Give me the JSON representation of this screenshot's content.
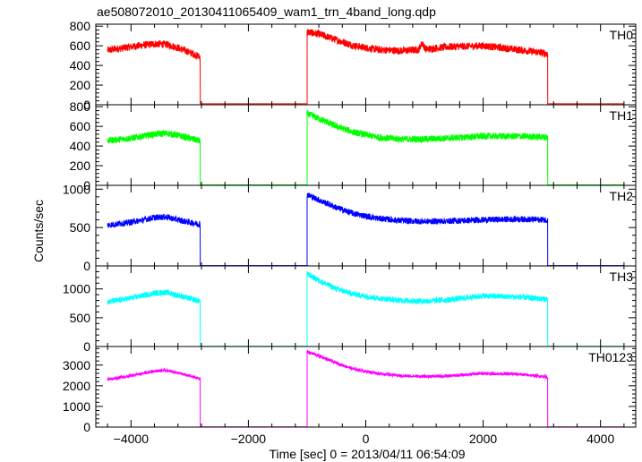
{
  "chart_data": {
    "type": "line",
    "title": "ae508072010_20130411065409_wam1_trn_4band_long.qdp",
    "xlabel": "Time [sec] 0 = 2013/04/11 06:54:09",
    "ylabel": "Counts/sec",
    "xlim": [
      -4600,
      4600
    ],
    "x_ticks": [
      -4000,
      -2000,
      0,
      2000,
      4000
    ],
    "x_ticklabels": [
      "−4000",
      "−2000",
      "0",
      "2000",
      "4000"
    ],
    "panels": [
      {
        "name": "TH0",
        "color": "#ff0000",
        "ylim": [
          0,
          820
        ],
        "y_ticks": [
          0,
          200,
          400,
          600,
          800
        ],
        "y_ticklabels": [
          "0",
          "200",
          "400",
          "600",
          "800"
        ],
        "noise": 38,
        "segments": [
          {
            "x": [
              -4400,
              -4000,
              -3600,
              -3400,
              -3200,
              -2950,
              -2820
            ],
            "y": [
              555,
              590,
              620,
              615,
              580,
              520,
              485
            ]
          },
          {
            "x": [
              -2820,
              -1000
            ],
            "y": [
              10,
              10
            ]
          },
          {
            "x": [
              -1000,
              -800,
              -500,
              -200,
              200,
              600,
              900,
              960,
              1020,
              1400,
              2000,
              2600,
              3100
            ],
            "y": [
              740,
              720,
              660,
              600,
              560,
              550,
              560,
              630,
              565,
              590,
              600,
              560,
              520
            ]
          },
          {
            "x": [
              3100,
              4400
            ],
            "y": [
              10,
              10
            ]
          }
        ]
      },
      {
        "name": "TH1",
        "color": "#00ff00",
        "ylim": [
          0,
          820
        ],
        "y_ticks": [
          0,
          200,
          400,
          600,
          800
        ],
        "y_ticklabels": [
          "0",
          "200",
          "400",
          "600",
          "800"
        ],
        "noise": 34,
        "segments": [
          {
            "x": [
              -4400,
              -4000,
              -3600,
              -3400,
              -3200,
              -2950,
              -2820
            ],
            "y": [
              455,
              480,
              520,
              530,
              510,
              470,
              450
            ]
          },
          {
            "x": [
              -2820,
              -1000
            ],
            "y": [
              5,
              5
            ]
          },
          {
            "x": [
              -1000,
              -800,
              -500,
              -200,
              200,
              600,
              1000,
              1400,
              2000,
              2600,
              3100
            ],
            "y": [
              730,
              680,
              600,
              540,
              490,
              470,
              470,
              480,
              500,
              500,
              490
            ]
          },
          {
            "x": [
              3100,
              4400
            ],
            "y": [
              5,
              5
            ]
          }
        ]
      },
      {
        "name": "TH2",
        "color": "#0000ff",
        "ylim": [
          0,
          1050
        ],
        "y_ticks": [
          0,
          500,
          1000
        ],
        "y_ticklabels": [
          "0",
          "500",
          "1000"
        ],
        "noise": 40,
        "segments": [
          {
            "x": [
              -4400,
              -4000,
              -3600,
              -3400,
              -3200,
              -2950,
              -2820
            ],
            "y": [
              530,
              570,
              630,
              640,
              600,
              560,
              540
            ]
          },
          {
            "x": [
              -2820,
              -1000
            ],
            "y": [
              5,
              5
            ]
          },
          {
            "x": [
              -1000,
              -800,
              -500,
              -200,
              200,
              600,
              1000,
              1400,
              2000,
              2600,
              3100
            ],
            "y": [
              930,
              860,
              760,
              680,
              620,
              590,
              580,
              585,
              600,
              610,
              600
            ]
          },
          {
            "x": [
              3100,
              4400
            ],
            "y": [
              5,
              5
            ]
          }
        ]
      },
      {
        "name": "TH3",
        "color": "#00ffff",
        "ylim": [
          0,
          1400
        ],
        "y_ticks": [
          0,
          500,
          1000
        ],
        "y_ticklabels": [
          "0",
          "500",
          "1000"
        ],
        "noise": 50,
        "segments": [
          {
            "x": [
              -4400,
              -4000,
              -3600,
              -3400,
              -3200,
              -2950,
              -2820
            ],
            "y": [
              770,
              840,
              930,
              940,
              890,
              820,
              790
            ]
          },
          {
            "x": [
              -2820,
              -1000
            ],
            "y": [
              5,
              5
            ]
          },
          {
            "x": [
              -1000,
              -800,
              -500,
              -200,
              200,
              600,
              1000,
              1400,
              2000,
              2600,
              3100
            ],
            "y": [
              1260,
              1150,
              1000,
              910,
              840,
              800,
              790,
              810,
              880,
              860,
              820
            ]
          },
          {
            "x": [
              3100,
              4400
            ],
            "y": [
              5,
              5
            ]
          }
        ]
      },
      {
        "name": "TH0123",
        "color": "#ff00ff",
        "ylim": [
          0,
          3900
        ],
        "y_ticks": [
          0,
          1000,
          2000,
          3000
        ],
        "y_ticklabels": [
          "0",
          "1000",
          "2000",
          "3000"
        ],
        "noise": 75,
        "segments": [
          {
            "x": [
              -4400,
              -4000,
              -3600,
              -3400,
              -3200,
              -2950,
              -2820
            ],
            "y": [
              2300,
              2480,
              2720,
              2750,
              2620,
              2430,
              2350
            ]
          },
          {
            "x": [
              -2820,
              -1000
            ],
            "y": [
              10,
              10
            ]
          },
          {
            "x": [
              -1000,
              -800,
              -500,
              -200,
              200,
              600,
              1000,
              1400,
              2000,
              2600,
              3100
            ],
            "y": [
              3650,
              3450,
              3100,
              2800,
              2600,
              2480,
              2450,
              2470,
              2600,
              2560,
              2430
            ]
          },
          {
            "x": [
              3100,
              4400
            ],
            "y": [
              10,
              10
            ]
          }
        ]
      }
    ]
  }
}
